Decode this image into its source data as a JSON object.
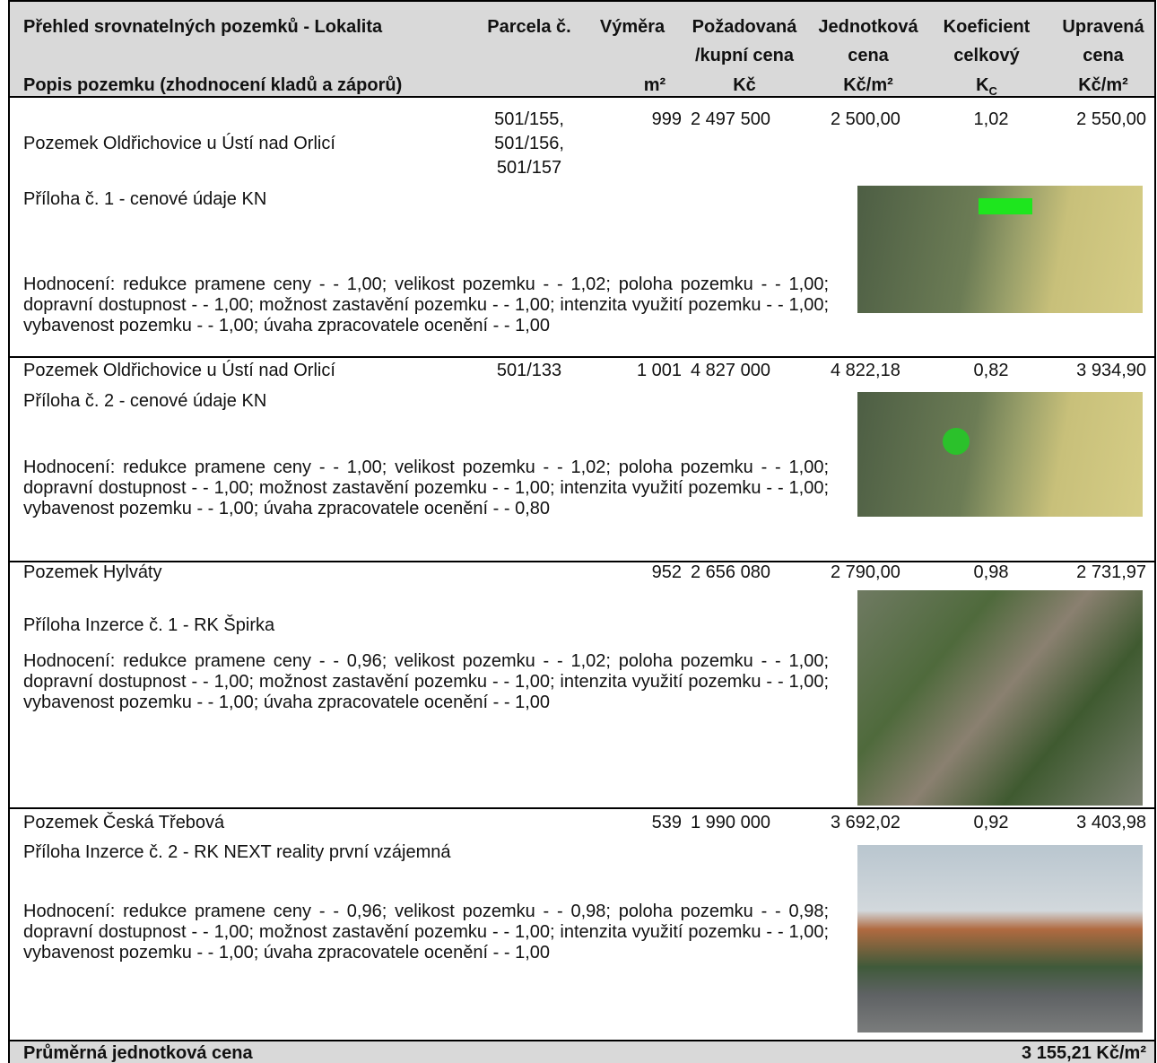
{
  "header": {
    "title_line1": "Přehled srovnatelných pozemků - Lokalita",
    "title_line2": "Popis pozemku (zhodnocení kladů a záporů)",
    "columns": [
      {
        "top": "Parcela č."
      },
      {
        "top": "Výměra",
        "bottom": "m²"
      },
      {
        "top": "Požadovaná",
        "mid": "/kupní cena",
        "bottom": "Kč"
      },
      {
        "top": "Jednotková",
        "mid": "cena",
        "bottom": "Kč/m²"
      },
      {
        "top": "Koeficient",
        "mid": "celkový",
        "bottom": "K",
        "bottom_sub": "C"
      },
      {
        "top": "Upravená",
        "mid": "cena",
        "bottom": "Kč/m²"
      }
    ]
  },
  "rows": [
    {
      "location": "Pozemek Oldřichovice u Ústí nad Orlicí",
      "parcel": [
        "501/155,",
        "501/156,",
        "501/157"
      ],
      "area": "999",
      "price": "2 497 500",
      "unit_price": "2 500,00",
      "coefficient": "1,02",
      "adjusted": "2 550,00",
      "attachment": "Příloha č. 1 - cenové údaje KN",
      "evaluation": "Hodnocení: redukce pramene ceny - - 1,00; velikost pozemku - - 1,02; poloha pozemku - - 1,00; dopravní dostupnost - - 1,00; možnost zastavění pozemku - - 1,00; intenzita využití pozemku - - 1,00; vybavenost pozemku - - 1,00; úvaha zpracovatele ocenění - - 1,00"
    },
    {
      "location": "Pozemek Oldřichovice u Ústí nad Orlicí",
      "parcel": [
        "501/133"
      ],
      "area": "1 001",
      "price": "4 827 000",
      "unit_price": "4 822,18",
      "coefficient": "0,82",
      "adjusted": "3 934,90",
      "attachment": "Příloha č. 2 - cenové údaje KN",
      "evaluation": "Hodnocení: redukce pramene ceny - - 1,00; velikost pozemku - - 1,02; poloha pozemku - - 1,00; dopravní dostupnost - - 1,00; možnost zastavění pozemku - - 1,00; intenzita využití pozemku - - 1,00; vybavenost pozemku - - 1,00; úvaha zpracovatele ocenění - - 0,80"
    },
    {
      "location": "Pozemek Hylváty",
      "parcel": [],
      "area": "952",
      "price": "2 656 080",
      "unit_price": "2 790,00",
      "coefficient": "0,98",
      "adjusted": "2 731,97",
      "attachment": "Příloha Inzerce č. 1 - RK Špirka",
      "evaluation": "Hodnocení: redukce pramene ceny - - 0,96; velikost pozemku - - 1,02; poloha pozemku - - 1,00; dopravní dostupnost - - 1,00; možnost zastavění pozemku - - 1,00; intenzita využití pozemku - - 1,00; vybavenost pozemku - - 1,00; úvaha zpracovatele ocenění - - 1,00"
    },
    {
      "location": "Pozemek Česká Třebová",
      "parcel": [],
      "area": "539",
      "price": "1 990 000",
      "unit_price": "3 692,02",
      "coefficient": "0,92",
      "adjusted": "3 403,98",
      "attachment": "Příloha Inzerce č. 2 - RK NEXT reality první vzájemná",
      "evaluation": "Hodnocení: redukce pramene ceny - - 0,96; velikost pozemku - - 0,98; poloha pozemku - - 0,98; dopravní dostupnost - - 1,00; možnost zastavění pozemku - - 1,00; intenzita využití pozemku - - 1,00; vybavenost pozemku - - 1,00; úvaha zpracovatele ocenění - - 1,00"
    }
  ],
  "footer": {
    "label": "Průměrná jednotková cena",
    "value": "3 155,21 Kč/m²"
  }
}
